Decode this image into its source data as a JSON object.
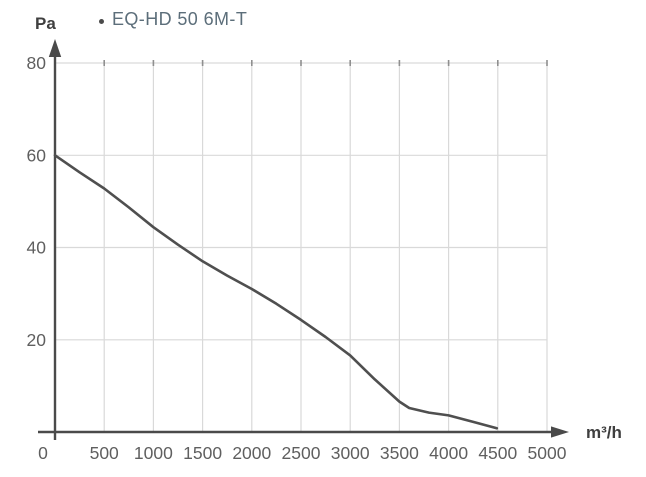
{
  "legend": {
    "series_label": "EQ-HD 50 6M-T",
    "dot_color": "#4a4a4a",
    "text_color": "#5c6e7a"
  },
  "chart": {
    "y_unit": "Pa",
    "x_unit": "m³/h"
  },
  "chart_data": {
    "type": "line",
    "title": "",
    "xlabel": "m³/h",
    "ylabel": "Pa",
    "xlim": [
      0,
      5000
    ],
    "ylim": [
      0,
      80
    ],
    "x_ticks": [
      0,
      500,
      1000,
      1500,
      2000,
      2500,
      3000,
      3500,
      4000,
      4500,
      5000
    ],
    "y_ticks": [
      20,
      40,
      60,
      80
    ],
    "grid": true,
    "legend_position": "top-left",
    "series": [
      {
        "name": "EQ-HD 50 6M-T",
        "points": [
          [
            0,
            60.0
          ],
          [
            250,
            56.3
          ],
          [
            500,
            52.8
          ],
          [
            750,
            48.7
          ],
          [
            1000,
            44.4
          ],
          [
            1250,
            40.6
          ],
          [
            1500,
            37.0
          ],
          [
            1750,
            33.9
          ],
          [
            2000,
            31.0
          ],
          [
            2250,
            27.8
          ],
          [
            2500,
            24.3
          ],
          [
            2750,
            20.6
          ],
          [
            3000,
            16.6
          ],
          [
            3250,
            11.4
          ],
          [
            3500,
            6.6
          ],
          [
            3600,
            5.2
          ],
          [
            3800,
            4.2
          ],
          [
            4000,
            3.6
          ],
          [
            4250,
            2.2
          ],
          [
            4490,
            0.8
          ]
        ]
      }
    ],
    "colors": {
      "curve": "#4f4f4f",
      "grid": "#d9d9d9",
      "top_tick": "#8f8f8f",
      "axis": "#4a4a4a",
      "tick_label": "#5f5f5f",
      "unit_label": "#3f3f3f"
    }
  }
}
